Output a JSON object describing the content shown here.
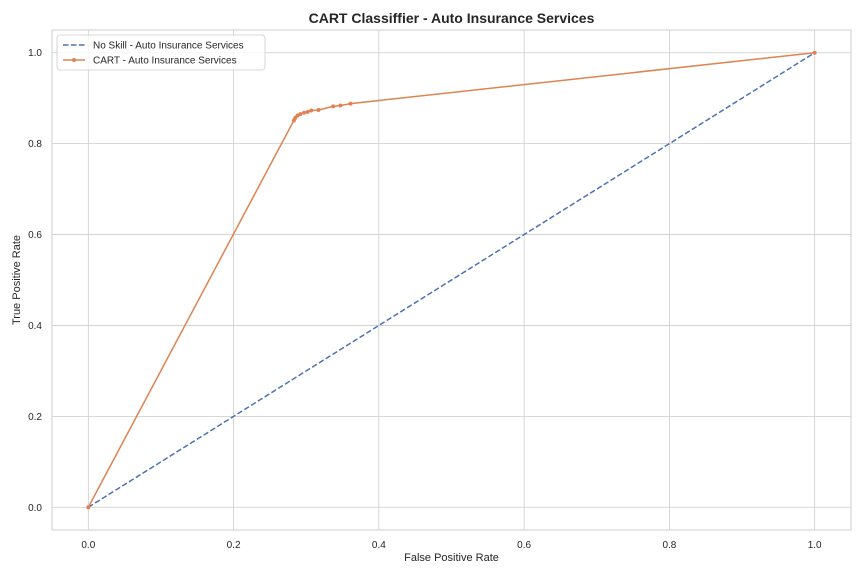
{
  "chart_data": {
    "type": "line",
    "title": "CART Classiffier - Auto Insurance Services",
    "xlabel": "False Positive Rate",
    "ylabel": "True Positive Rate",
    "xlim": [
      -0.05,
      1.05
    ],
    "ylim": [
      -0.05,
      1.05
    ],
    "xticks": [
      0.0,
      0.2,
      0.4,
      0.6,
      0.8,
      1.0
    ],
    "yticks": [
      0.0,
      0.2,
      0.4,
      0.6,
      0.8,
      1.0
    ],
    "tick_labels_x": [
      "0.0",
      "0.2",
      "0.4",
      "0.6",
      "0.8",
      "1.0"
    ],
    "tick_labels_y": [
      "0.0",
      "0.2",
      "0.4",
      "0.6",
      "0.8",
      "1.0"
    ],
    "grid": true,
    "legend_position": "top-left",
    "series": [
      {
        "name": "No Skill - Auto Insurance Services",
        "style": "dashed",
        "marker": "none",
        "color": "#4c72b0",
        "x": [
          0.0,
          1.0
        ],
        "y": [
          0.0,
          1.0
        ]
      },
      {
        "name": "CART - Auto Insurance Services",
        "style": "solid",
        "marker": "dot",
        "color": "#dd8452",
        "x": [
          0.0,
          0.283,
          0.285,
          0.288,
          0.292,
          0.297,
          0.302,
          0.307,
          0.317,
          0.337,
          0.347,
          0.361,
          1.0
        ],
        "y": [
          0.0,
          0.851,
          0.857,
          0.862,
          0.865,
          0.868,
          0.87,
          0.873,
          0.874,
          0.882,
          0.884,
          0.888,
          1.0
        ]
      }
    ]
  }
}
